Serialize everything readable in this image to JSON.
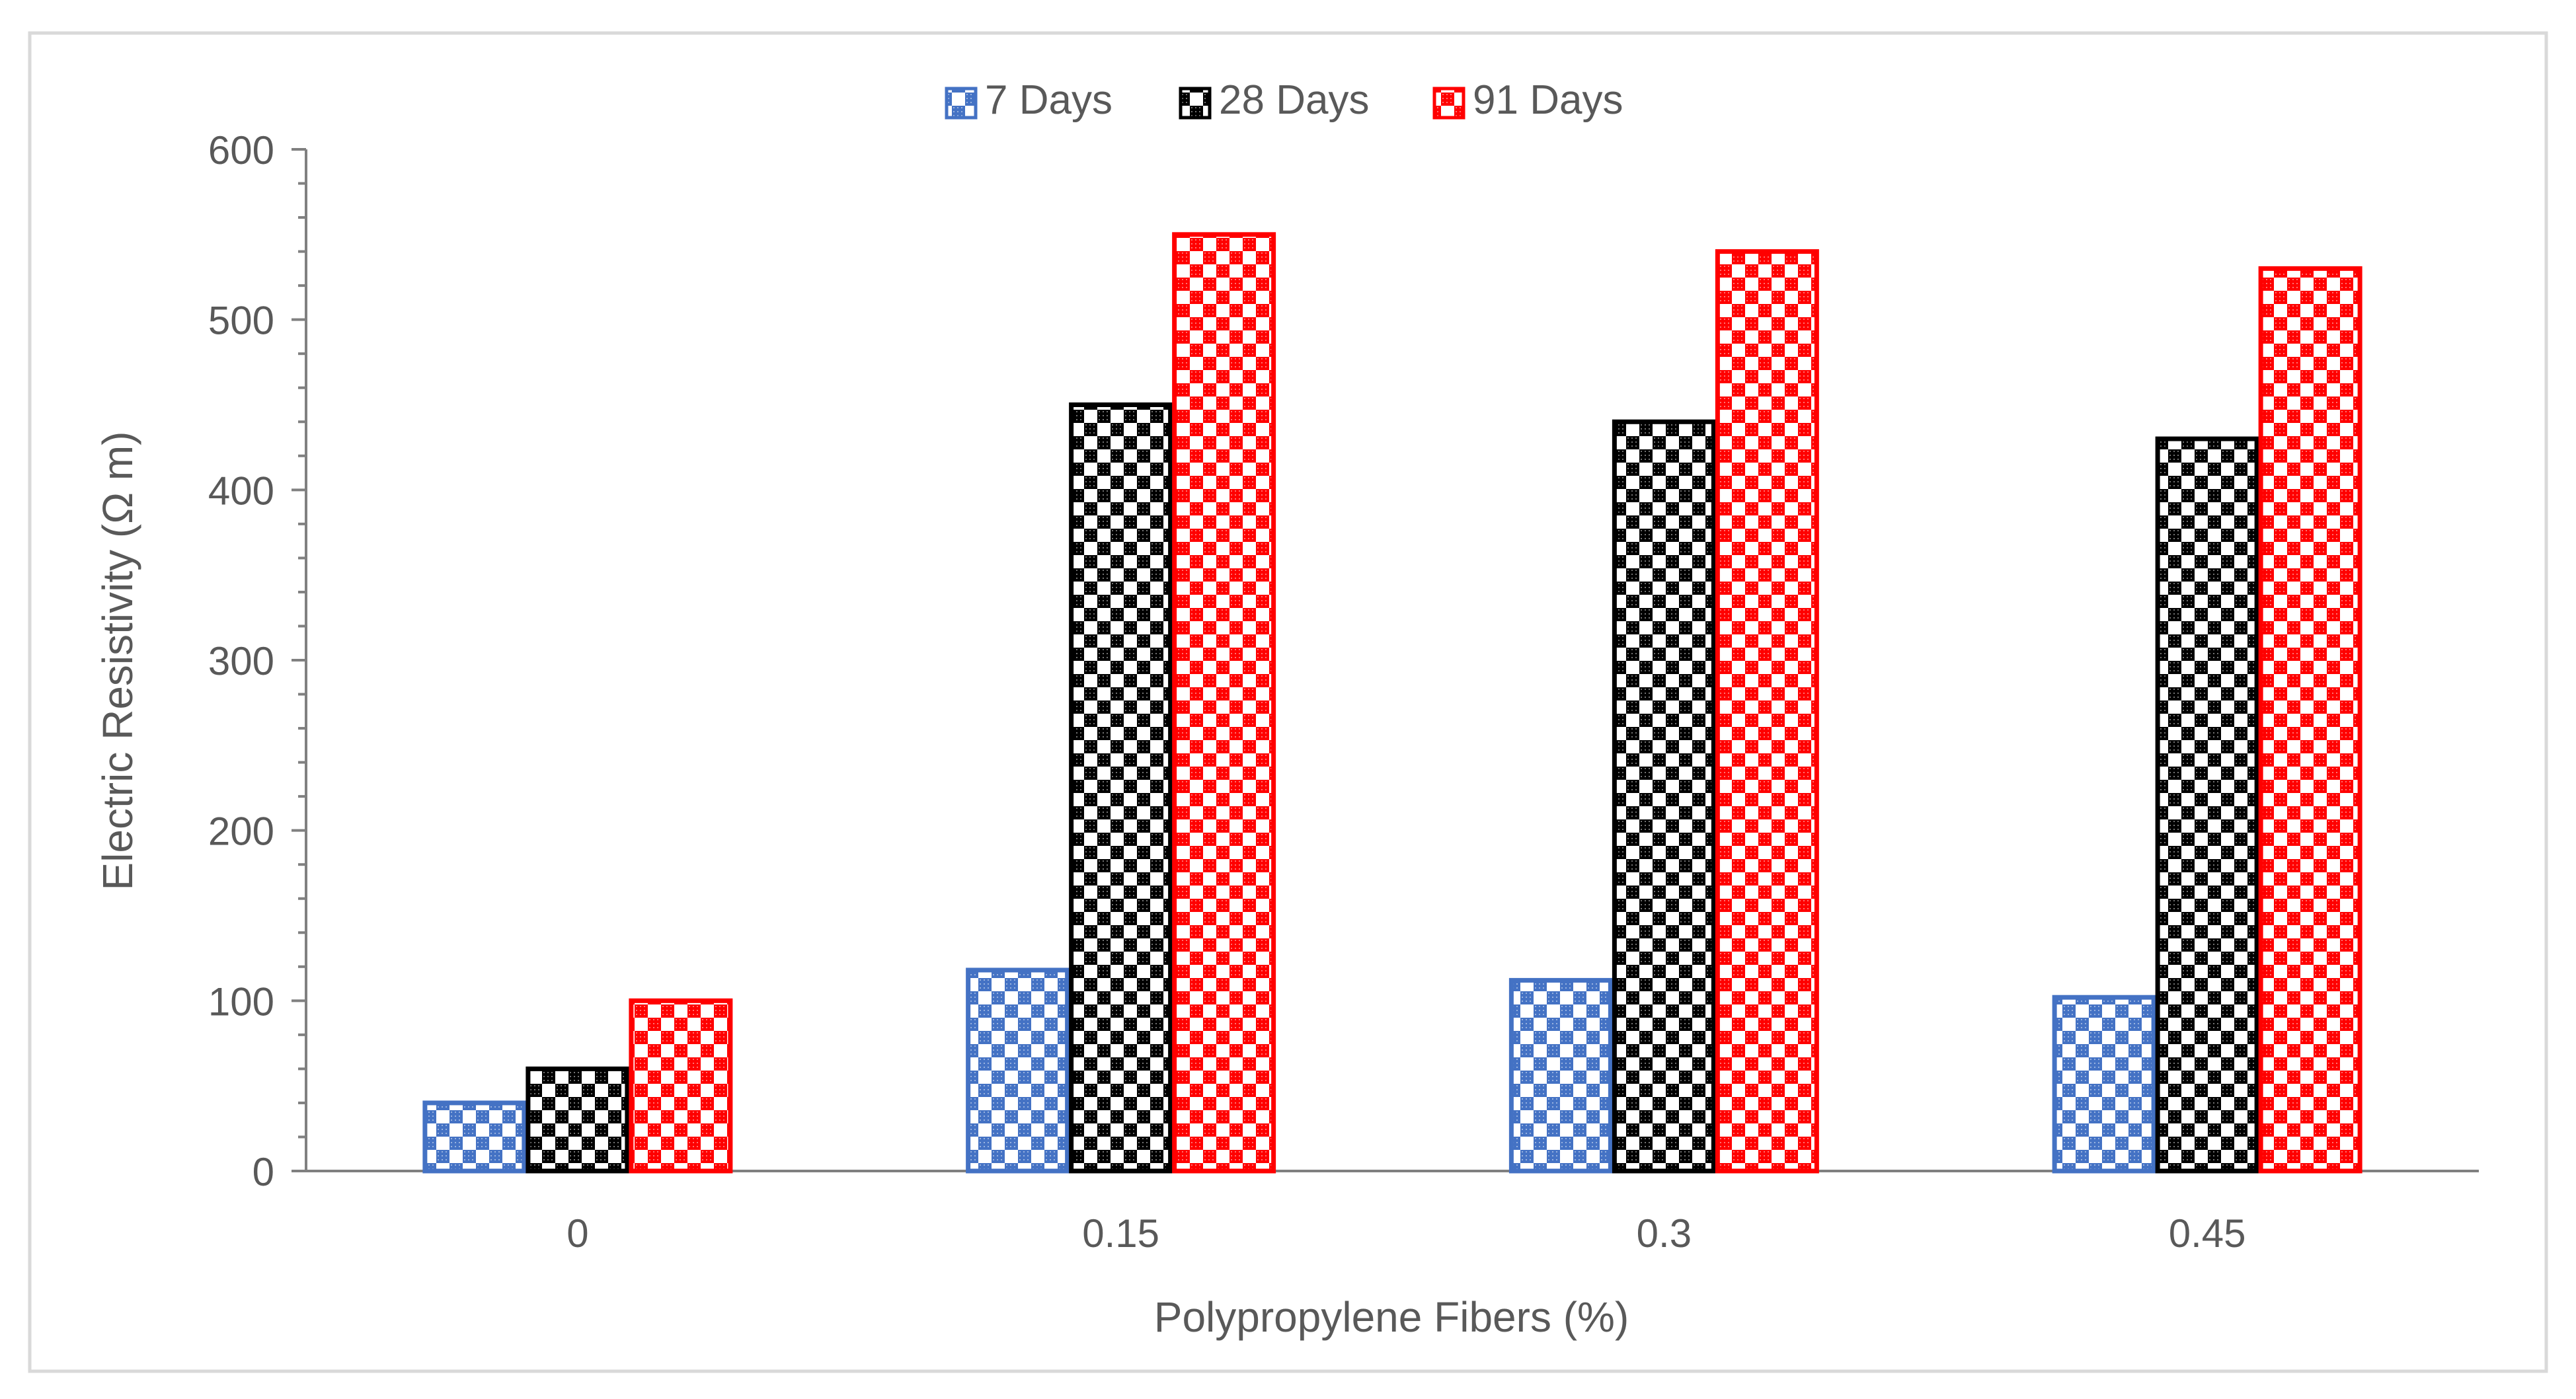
{
  "chart_data": {
    "type": "bar",
    "title": "",
    "xlabel": "Polypropylene Fibers (%)",
    "ylabel": "Electric Resistivity (Ω m)",
    "categories": [
      "0",
      "0.15",
      "0.3",
      "0.45"
    ],
    "ylim": [
      0,
      600
    ],
    "yticks": [
      "0",
      "100",
      "200",
      "300",
      "400",
      "500",
      "600"
    ],
    "yticks_values": [
      0,
      100,
      200,
      300,
      400,
      500,
      600
    ],
    "grid": false,
    "legend_position": "top",
    "series": [
      {
        "name": "7 Days",
        "values": [
          40,
          118,
          112,
          102
        ],
        "color": "#4472C4",
        "pattern": "checkerboard"
      },
      {
        "name": "28 Days",
        "values": [
          60,
          450,
          440,
          430
        ],
        "color": "#000000",
        "pattern": "checkerboard"
      },
      {
        "name": "91 Days",
        "values": [
          100,
          550,
          540,
          530
        ],
        "color": "#FF0000",
        "pattern": "checkerboard"
      }
    ]
  },
  "colors": {
    "axis": "#595959",
    "frame": "#D9D9D9"
  }
}
